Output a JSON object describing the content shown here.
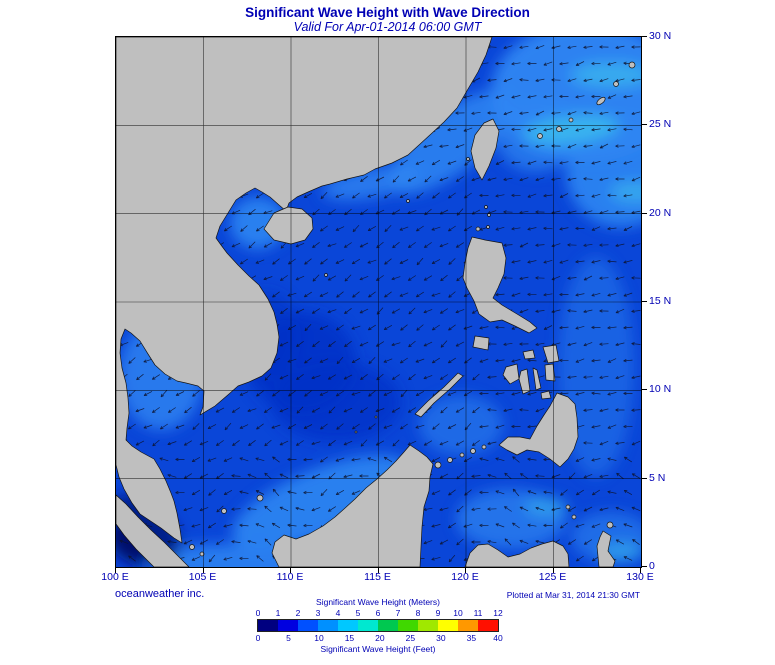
{
  "header": {
    "title": "Significant Wave Height with Wave Direction",
    "subtitle": "Valid For Apr-01-2014 06:00 GMT"
  },
  "map": {
    "lat_ticks": [
      "30 N",
      "25 N",
      "20 N",
      "15 N",
      "10 N",
      "5 N",
      "0"
    ],
    "lon_ticks": [
      "100 E",
      "105 E",
      "110 E",
      "115 E",
      "120 E",
      "125 E",
      "130 E"
    ]
  },
  "footer": {
    "credit": "oceanweather inc.",
    "plotted": "Plotted at Mar 31, 2014 21:30 GMT"
  },
  "legend": {
    "meters_title": "Significant Wave Height (Meters)",
    "feet_title": "Significant Wave Height (Feet)",
    "meters_ticks": [
      "0",
      "1",
      "2",
      "3",
      "4",
      "5",
      "6",
      "7",
      "8",
      "9",
      "10",
      "11",
      "12"
    ],
    "feet_ticks": [
      "0",
      "5",
      "10",
      "15",
      "20",
      "25",
      "30",
      "35",
      "40"
    ],
    "colors": [
      "#000080",
      "#0000e0",
      "#0050ff",
      "#0090ff",
      "#00c8ff",
      "#00e8d0",
      "#00c850",
      "#40d800",
      "#a0e800",
      "#ffff00",
      "#ff9800",
      "#ff1000"
    ]
  },
  "theme": {
    "text_color": "#0000b4",
    "land_color": "#bfbfbf",
    "ocean_base": "#0a46d8"
  }
}
